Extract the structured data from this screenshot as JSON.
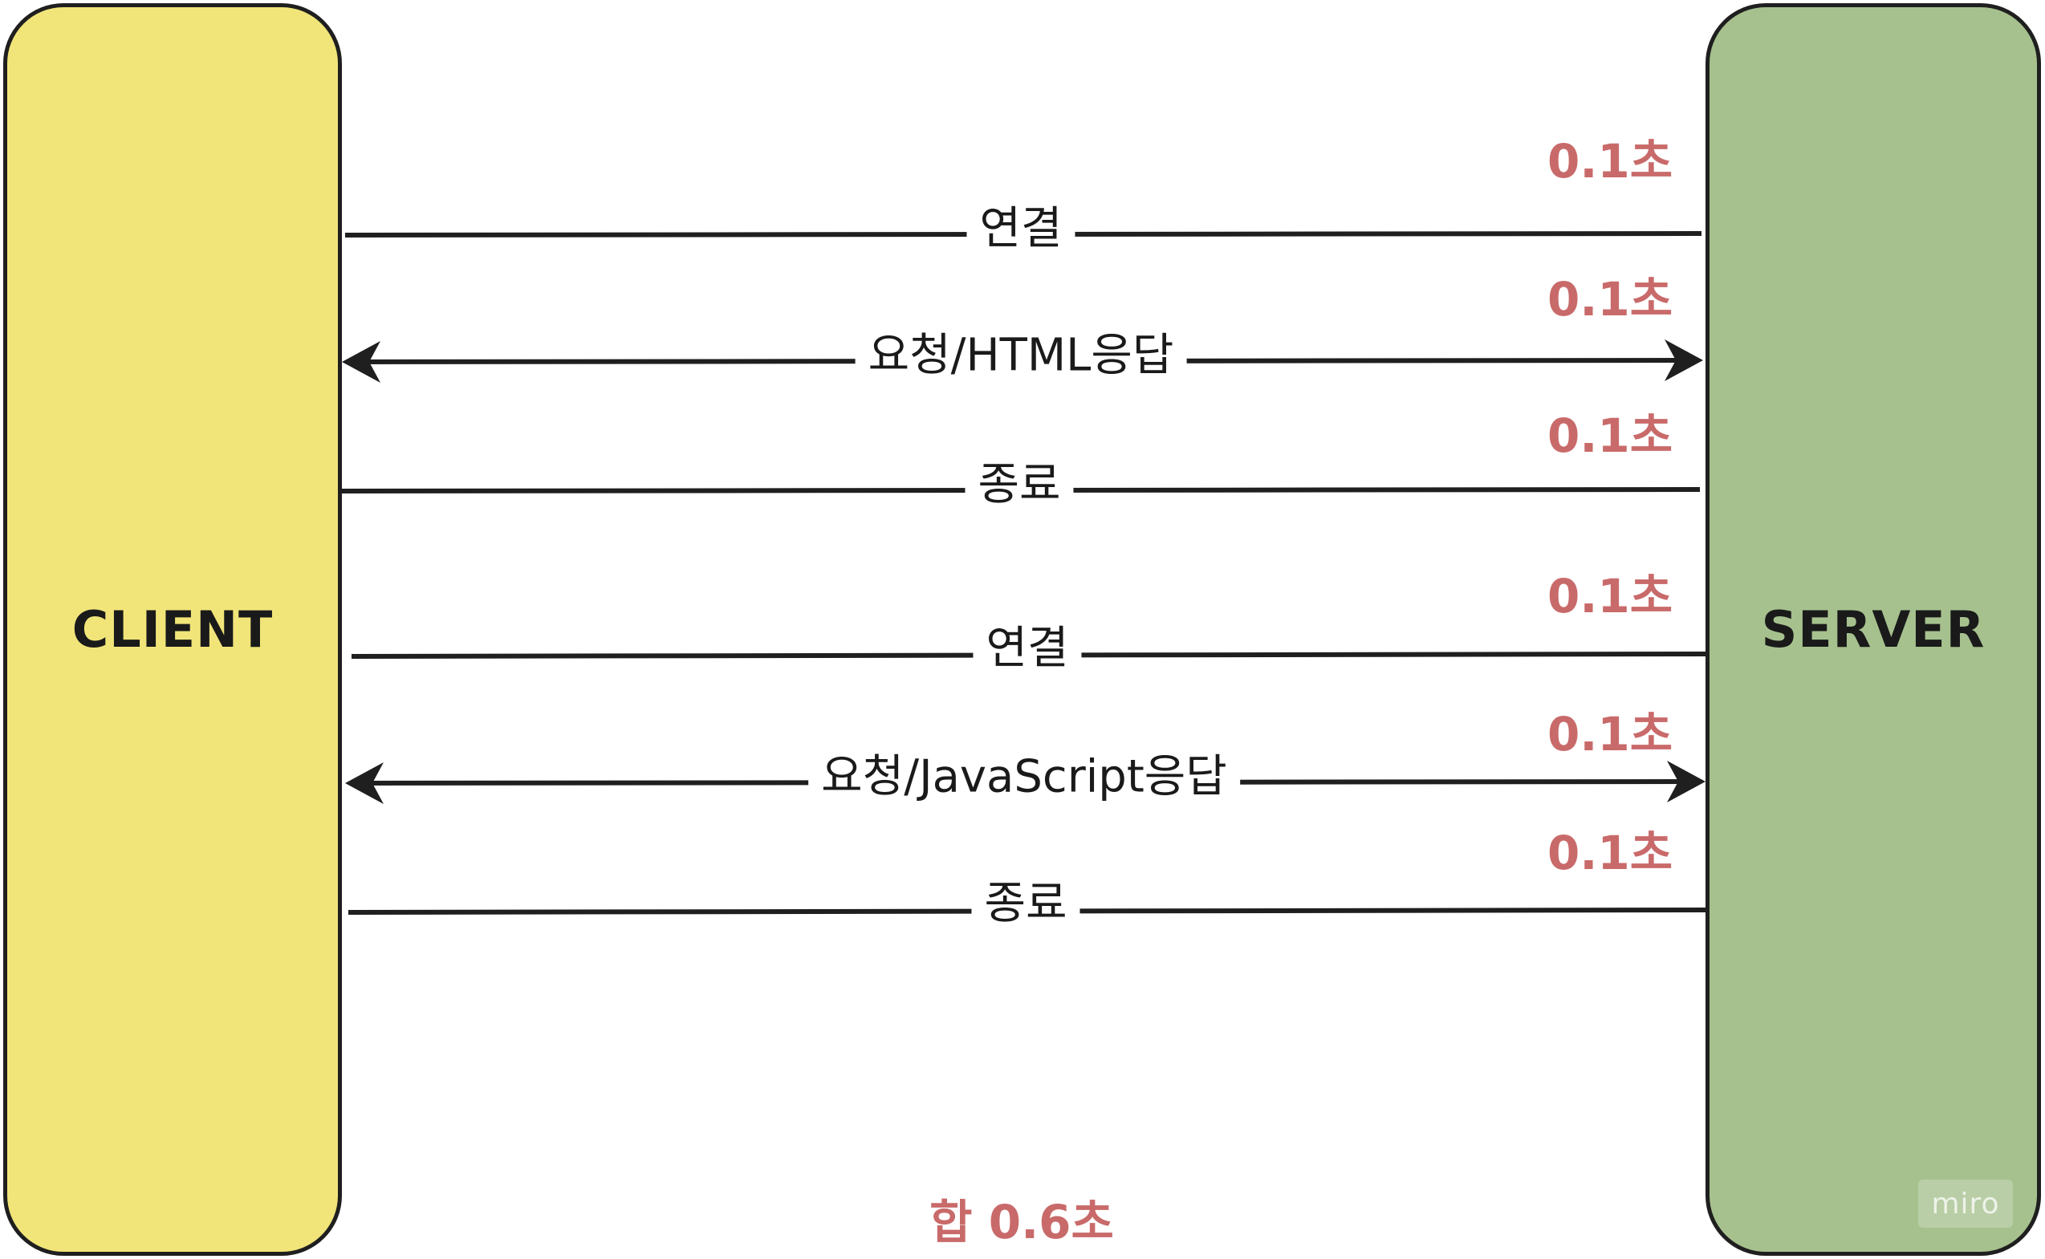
{
  "client": {
    "label": "CLIENT"
  },
  "server": {
    "label": "SERVER"
  },
  "messages": [
    {
      "label": "연결",
      "time": "0.1초",
      "bidirectional": false
    },
    {
      "label": "요청/HTML응답",
      "time": "0.1초",
      "bidirectional": true
    },
    {
      "label": "종료",
      "time": "0.1초",
      "bidirectional": false
    },
    {
      "label": "연결",
      "time": "0.1초",
      "bidirectional": false
    },
    {
      "label": "요청/JavaScript응답",
      "time": "0.1초",
      "bidirectional": true
    },
    {
      "label": "종료",
      "time": "0.1초",
      "bidirectional": false
    }
  ],
  "total": "합 0.6초",
  "watermark": "miro",
  "colors": {
    "client_fill": "#f1e57a",
    "server_fill": "#a6c18e",
    "time_text": "#c96a6a",
    "line": "#1f1f1f"
  }
}
